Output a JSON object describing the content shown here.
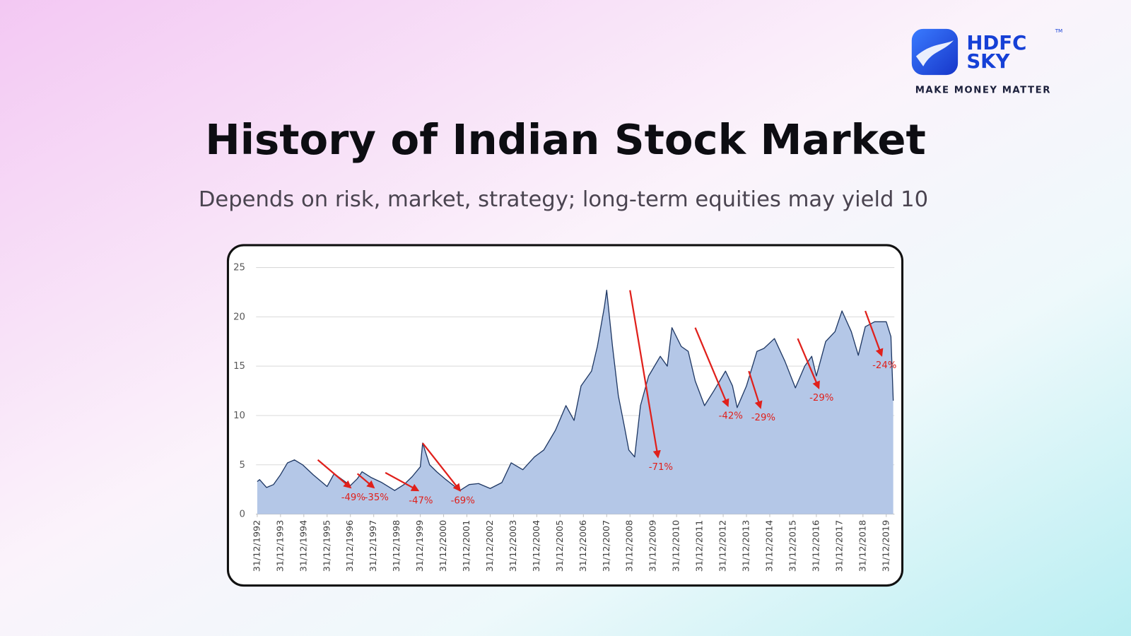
{
  "header": {
    "logo_top": "HDFC",
    "logo_bottom": "SKY",
    "trademark": "TM",
    "tagline": "MAKE MONEY MATTER",
    "title": "History of Indian Stock Market",
    "subtitle": "Depends on risk, market, strategy; long-term equities may yield 10"
  },
  "chart_data": {
    "type": "area",
    "color": "#b4c7e7",
    "line_color": "#1f3864",
    "grid": true,
    "x": [
      1993.0,
      1993.1,
      1993.4,
      1993.7,
      1994.0,
      1994.3,
      1994.6,
      1994.95,
      1995.4,
      1995.8,
      1996.0,
      1996.3,
      1996.65,
      1997.0,
      1997.3,
      1997.5,
      1997.9,
      1998.35,
      1998.9,
      1999.3,
      1999.65,
      2000.0,
      2000.1,
      2000.4,
      2000.7,
      2001.1,
      2001.7,
      2002.1,
      2002.5,
      2003.0,
      2003.5,
      2003.9,
      2004.4,
      2004.9,
      2005.3,
      2005.8,
      2006.25,
      2006.6,
      2006.9,
      2007.35,
      2007.6,
      2007.9,
      2008.0,
      2008.25,
      2008.5,
      2008.75,
      2008.95,
      2009.2,
      2009.45,
      2009.8,
      2010.3,
      2010.6,
      2010.8,
      2011.2,
      2011.5,
      2011.8,
      2012.2,
      2012.6,
      2013.1,
      2013.4,
      2013.6,
      2014.0,
      2014.45,
      2014.75,
      2015.2,
      2015.65,
      2016.1,
      2016.5,
      2016.8,
      2017.0,
      2017.4,
      2017.8,
      2018.1,
      2018.5,
      2018.8,
      2019.1,
      2019.5,
      2020.0,
      2020.2,
      2020.3
    ],
    "values": [
      3.3,
      3.5,
      2.7,
      3.0,
      4.0,
      5.2,
      5.5,
      5.0,
      4.0,
      3.2,
      2.8,
      4.1,
      3.5,
      2.9,
      3.6,
      4.3,
      3.7,
      3.2,
      2.4,
      3.0,
      3.8,
      4.8,
      7.2,
      5.0,
      4.3,
      3.5,
      2.4,
      3.0,
      3.1,
      2.6,
      3.2,
      5.2,
      4.5,
      5.8,
      6.5,
      8.5,
      11.0,
      9.5,
      13.0,
      14.5,
      17.0,
      21.0,
      22.7,
      17.0,
      12.0,
      9.0,
      6.5,
      5.8,
      11.0,
      14.0,
      16.0,
      15.0,
      18.9,
      17.0,
      16.5,
      13.5,
      11.0,
      12.5,
      14.5,
      13.0,
      10.8,
      13.0,
      16.5,
      16.8,
      17.8,
      15.5,
      12.8,
      15.0,
      16.0,
      14.0,
      17.5,
      18.5,
      20.6,
      18.5,
      16.1,
      19.0,
      19.5,
      19.5,
      18.0,
      11.5
    ],
    "xlim": [
      1992.95,
      2020.35
    ],
    "ylim": [
      0,
      25
    ],
    "yticks": [
      0,
      5,
      10,
      15,
      20,
      25
    ],
    "xticks": [
      {
        "value": 1993,
        "label": "31/12/1992"
      },
      {
        "value": 1994,
        "label": "31/12/1993"
      },
      {
        "value": 1995,
        "label": "31/12/1994"
      },
      {
        "value": 1996,
        "label": "31/12/1995"
      },
      {
        "value": 1997,
        "label": "31/12/1996"
      },
      {
        "value": 1998,
        "label": "31/12/1997"
      },
      {
        "value": 1999,
        "label": "31/12/1998"
      },
      {
        "value": 2000,
        "label": "31/12/1999"
      },
      {
        "value": 2001,
        "label": "31/12/2000"
      },
      {
        "value": 2002,
        "label": "31/12/2001"
      },
      {
        "value": 2003,
        "label": "31/12/2002"
      },
      {
        "value": 2004,
        "label": "31/12/2003"
      },
      {
        "value": 2005,
        "label": "31/12/2004"
      },
      {
        "value": 2006,
        "label": "31/12/2005"
      },
      {
        "value": 2007,
        "label": "31/12/2006"
      },
      {
        "value": 2008,
        "label": "31/12/2007"
      },
      {
        "value": 2009,
        "label": "31/12/2008"
      },
      {
        "value": 2010,
        "label": "31/12/2009"
      },
      {
        "value": 2011,
        "label": "31/12/2010"
      },
      {
        "value": 2012,
        "label": "31/12/2011"
      },
      {
        "value": 2013,
        "label": "31/12/2012"
      },
      {
        "value": 2014,
        "label": "31/12/2013"
      },
      {
        "value": 2015,
        "label": "31/12/2014"
      },
      {
        "value": 2016,
        "label": "31/12/2015"
      },
      {
        "value": 2017,
        "label": "31/12/2016"
      },
      {
        "value": 2018,
        "label": "31/12/2017"
      },
      {
        "value": 2019,
        "label": "31/12/2018"
      },
      {
        "value": 2020,
        "label": "31/12/2019"
      }
    ],
    "annotation_color": "#e0201b",
    "annotations": [
      {
        "text": "-49%",
        "x": [
          1995.6,
          1997.0
        ],
        "y": [
          5.5,
          2.7
        ]
      },
      {
        "text": "-35%",
        "x": [
          1997.3,
          1998.0
        ],
        "y": [
          4.1,
          2.7
        ]
      },
      {
        "text": "-47%",
        "x": [
          1998.5,
          1999.9
        ],
        "y": [
          4.2,
          2.4
        ]
      },
      {
        "text": "-69%",
        "x": [
          2000.1,
          2001.7
        ],
        "y": [
          7.2,
          2.4
        ]
      },
      {
        "text": "-71%",
        "x": [
          2009.0,
          2010.2
        ],
        "y": [
          22.7,
          5.8
        ]
      },
      {
        "text": "-42%",
        "x": [
          2011.8,
          2013.2
        ],
        "y": [
          18.9,
          11.0
        ]
      },
      {
        "text": "-29%",
        "x": [
          2014.1,
          2014.6
        ],
        "y": [
          14.5,
          10.8
        ]
      },
      {
        "text": "-29%",
        "x": [
          2016.2,
          2017.1
        ],
        "y": [
          17.8,
          12.8
        ]
      },
      {
        "text": "-24%",
        "x": [
          2019.1,
          2019.8
        ],
        "y": [
          20.6,
          16.1
        ]
      }
    ]
  }
}
